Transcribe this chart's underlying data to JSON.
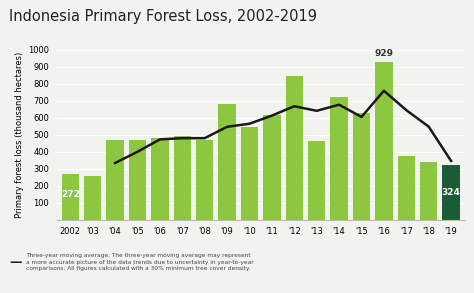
{
  "title": "Indonesia Primary Forest Loss, 2002-2019",
  "ylabel": "Primary forest loss (thousand hectares)",
  "years": [
    "2002",
    "'03",
    "'04",
    "'05",
    "'06",
    "'07",
    "'08",
    "'09",
    "'10",
    "'11",
    "'12",
    "'13",
    "'14",
    "'15",
    "'16",
    "'17",
    "'18",
    "'19"
  ],
  "bar_values": [
    272,
    260,
    470,
    470,
    480,
    490,
    470,
    680,
    545,
    615,
    845,
    465,
    720,
    630,
    929,
    375,
    340,
    324
  ],
  "bar_colors": [
    "#8dc63f",
    "#8dc63f",
    "#8dc63f",
    "#8dc63f",
    "#8dc63f",
    "#8dc63f",
    "#8dc63f",
    "#8dc63f",
    "#8dc63f",
    "#8dc63f",
    "#8dc63f",
    "#8dc63f",
    "#8dc63f",
    "#8dc63f",
    "#8dc63f",
    "#8dc63f",
    "#8dc63f",
    "#1a5c35"
  ],
  "moving_avg": [
    null,
    null,
    334,
    400,
    473,
    480,
    480,
    547,
    565,
    613,
    668,
    641,
    677,
    605,
    759,
    645,
    548,
    346
  ],
  "ylim": [
    0,
    1000
  ],
  "yticks": [
    0,
    100,
    200,
    300,
    400,
    500,
    600,
    700,
    800,
    900,
    1000
  ],
  "line_color": "#1a1a1a",
  "bar_color_main": "#8dc63f",
  "bar_color_last": "#1a5c35",
  "background_color": "#f2f2ee",
  "legend_line_label": "Three-year moving average. The three-year moving average may represent\na more accurate picture of the data trends due to uncertainty in year-to-year\ncomparisons. All figures calculated with a 30% minimum tree cover density.",
  "peak_index": 14,
  "peak_value": 929,
  "first_value": 272,
  "last_value": 324,
  "title_fontsize": 10.5,
  "axis_fontsize": 6.0,
  "ylabel_fontsize": 6.0,
  "annotation_fontsize": 6.5
}
